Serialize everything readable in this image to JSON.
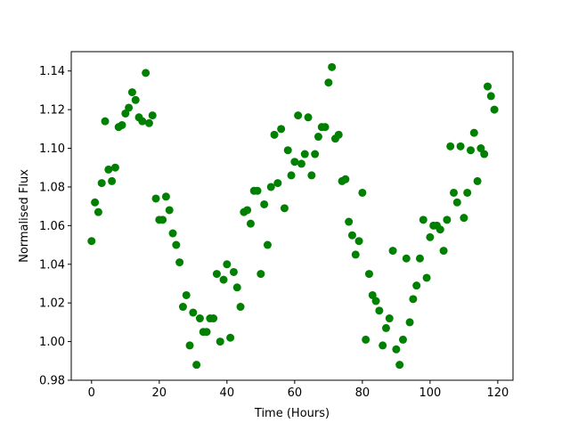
{
  "chart_data": {
    "type": "scatter",
    "title": "",
    "xlabel": "Time (Hours)",
    "ylabel": "Normalised Flux",
    "xlim": [
      -6,
      124.5
    ],
    "ylim": [
      0.98,
      1.15
    ],
    "xticks": [
      0,
      20,
      40,
      60,
      80,
      100,
      120
    ],
    "xtick_labels": [
      "0",
      "20",
      "40",
      "60",
      "80",
      "100",
      "120"
    ],
    "yticks": [
      0.98,
      1.0,
      1.02,
      1.04,
      1.06,
      1.08,
      1.1,
      1.12,
      1.14
    ],
    "ytick_labels": [
      "0.98",
      "1.00",
      "1.02",
      "1.04",
      "1.06",
      "1.08",
      "1.10",
      "1.12",
      "1.14"
    ],
    "grid": false,
    "marker_color": "#008000",
    "x": [
      0,
      1,
      2,
      3,
      4,
      5,
      6,
      7,
      8,
      9,
      10,
      11,
      12,
      13,
      14,
      15,
      16,
      17,
      18,
      19,
      20,
      21,
      22,
      23,
      24,
      25,
      26,
      27,
      28,
      29,
      30,
      31,
      32,
      33,
      34,
      35,
      36,
      37,
      38,
      39,
      40,
      41,
      42,
      43,
      44,
      45,
      46,
      47,
      48,
      49,
      50,
      51,
      52,
      53,
      54,
      55,
      56,
      57,
      58,
      59,
      60,
      61,
      62,
      63,
      64,
      65,
      66,
      67,
      68,
      69,
      70,
      71,
      72,
      73,
      74,
      75,
      76,
      77,
      78,
      79,
      80,
      81,
      82,
      83,
      84,
      85,
      86,
      87,
      88,
      89,
      90,
      91,
      92,
      93,
      94,
      95,
      96,
      97,
      98,
      99,
      100,
      101,
      102,
      103,
      104,
      105,
      106,
      107,
      108,
      109,
      110,
      111,
      112,
      113,
      114,
      115,
      116,
      117,
      118,
      119
    ],
    "y": [
      1.052,
      1.072,
      1.067,
      1.082,
      1.114,
      1.089,
      1.083,
      1.09,
      1.111,
      1.112,
      1.118,
      1.121,
      1.129,
      1.125,
      1.116,
      1.114,
      1.139,
      1.113,
      1.117,
      1.074,
      1.063,
      1.063,
      1.075,
      1.068,
      1.056,
      1.05,
      1.041,
      1.018,
      1.024,
      0.998,
      1.015,
      0.988,
      1.012,
      1.005,
      1.005,
      1.012,
      1.012,
      1.035,
      1.0,
      1.032,
      1.04,
      1.002,
      1.036,
      1.028,
      1.018,
      1.067,
      1.068,
      1.061,
      1.078,
      1.078,
      1.035,
      1.071,
      1.05,
      1.08,
      1.107,
      1.082,
      1.11,
      1.069,
      1.099,
      1.086,
      1.093,
      1.117,
      1.092,
      1.097,
      1.116,
      1.086,
      1.097,
      1.106,
      1.111,
      1.111,
      1.134,
      1.142,
      1.105,
      1.107,
      1.083,
      1.084,
      1.062,
      1.055,
      1.045,
      1.052,
      1.077,
      1.001,
      1.035,
      1.024,
      1.021,
      1.016,
      0.998,
      1.007,
      1.012,
      1.047,
      0.996,
      0.988,
      1.001,
      1.043,
      1.01,
      1.022,
      1.029,
      1.043,
      1.063,
      1.033,
      1.054,
      1.06,
      1.06,
      1.058,
      1.047,
      1.063,
      1.101,
      1.077,
      1.072,
      1.101,
      1.064,
      1.077,
      1.099,
      1.108,
      1.083,
      1.1,
      1.097,
      1.132,
      1.127,
      1.12
    ]
  }
}
